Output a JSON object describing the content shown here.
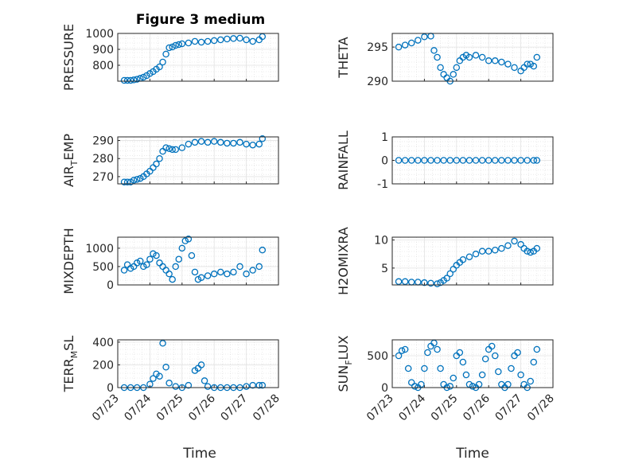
{
  "figure": {
    "title": "Figure 3 medium",
    "xlabel": "Time",
    "marker_color": "#0072BD",
    "xticks": [
      "07/23",
      "07/24",
      "07/25",
      "07/26",
      "07/27",
      "07/28"
    ]
  },
  "chart_data": [
    {
      "id": "pressure",
      "type": "scatter",
      "ylabel": "PRESSURE",
      "ylabel_sub": "",
      "ylabel_rest": "",
      "ylim": [
        700,
        1000
      ],
      "yticks": [
        800,
        900,
        1000
      ],
      "xlim": [
        0,
        5
      ],
      "x": [
        0.2,
        0.3,
        0.4,
        0.5,
        0.6,
        0.7,
        0.8,
        0.9,
        1.0,
        1.1,
        1.2,
        1.3,
        1.4,
        1.5,
        1.6,
        1.7,
        1.8,
        1.9,
        2.0,
        2.2,
        2.4,
        2.6,
        2.8,
        3.0,
        3.2,
        3.4,
        3.6,
        3.8,
        4.0,
        4.2,
        4.4,
        4.5
      ],
      "y": [
        705,
        705,
        705,
        708,
        712,
        718,
        725,
        735,
        748,
        760,
        775,
        790,
        820,
        870,
        910,
        915,
        925,
        930,
        935,
        940,
        950,
        945,
        950,
        955,
        960,
        965,
        968,
        970,
        960,
        950,
        960,
        980
      ]
    },
    {
      "id": "theta",
      "type": "scatter",
      "ylabel": "THETA",
      "ylabel_sub": "",
      "ylabel_rest": "",
      "ylim": [
        290,
        297
      ],
      "yticks": [
        290,
        295
      ],
      "xlim": [
        0,
        5
      ],
      "x": [
        0.2,
        0.4,
        0.6,
        0.8,
        1.0,
        1.2,
        1.3,
        1.4,
        1.5,
        1.6,
        1.7,
        1.8,
        1.9,
        2.0,
        2.1,
        2.2,
        2.3,
        2.4,
        2.6,
        2.8,
        3.0,
        3.2,
        3.4,
        3.6,
        3.8,
        4.0,
        4.1,
        4.2,
        4.3,
        4.4,
        4.5
      ],
      "y": [
        295,
        295.3,
        295.6,
        296,
        296.5,
        296.6,
        294.5,
        293.5,
        292,
        291,
        290.5,
        290,
        291,
        292,
        293,
        293.5,
        293.8,
        293.5,
        293.8,
        293.5,
        293,
        293,
        292.8,
        292.5,
        292,
        291.5,
        292,
        292.5,
        292.5,
        292.2,
        293.5
      ]
    },
    {
      "id": "air_temp",
      "type": "scatter",
      "ylabel": "AIR",
      "ylabel_sub": "T",
      "ylabel_rest": "EMP",
      "ylim": [
        266,
        292
      ],
      "yticks": [
        270,
        280,
        290
      ],
      "xlim": [
        0,
        5
      ],
      "x": [
        0.2,
        0.3,
        0.4,
        0.5,
        0.6,
        0.7,
        0.8,
        0.9,
        1.0,
        1.1,
        1.2,
        1.3,
        1.4,
        1.5,
        1.6,
        1.7,
        1.8,
        2.0,
        2.2,
        2.4,
        2.6,
        2.8,
        3.0,
        3.2,
        3.4,
        3.6,
        3.8,
        4.0,
        4.2,
        4.4,
        4.5
      ],
      "y": [
        267,
        267,
        267,
        268,
        268.5,
        269,
        270,
        271.5,
        273,
        275,
        277,
        280,
        284,
        286,
        285.5,
        285,
        285,
        286,
        288,
        289,
        289.5,
        289,
        289.5,
        289,
        288.5,
        288.5,
        289,
        288,
        287.5,
        288,
        291
      ]
    },
    {
      "id": "rainfall",
      "type": "scatter",
      "ylabel": "RAINFALL",
      "ylabel_sub": "",
      "ylabel_rest": "",
      "ylim": [
        -1,
        1
      ],
      "yticks": [
        -1,
        0,
        1
      ],
      "xlim": [
        0,
        5
      ],
      "x": [
        0.2,
        0.4,
        0.6,
        0.8,
        1.0,
        1.2,
        1.4,
        1.6,
        1.8,
        2.0,
        2.2,
        2.4,
        2.6,
        2.8,
        3.0,
        3.2,
        3.4,
        3.6,
        3.8,
        4.0,
        4.2,
        4.4,
        4.5
      ],
      "y": [
        0,
        0,
        0,
        0,
        0,
        0,
        0,
        0,
        0,
        0,
        0,
        0,
        0,
        0,
        0,
        0,
        0,
        0,
        0,
        0,
        0,
        0,
        0
      ]
    },
    {
      "id": "mixdepth",
      "type": "scatter",
      "ylabel": "MIXDEPTH",
      "ylabel_sub": "",
      "ylabel_rest": "",
      "ylim": [
        0,
        1300
      ],
      "yticks": [
        0,
        500,
        1000
      ],
      "xlim": [
        0,
        5
      ],
      "x": [
        0.2,
        0.3,
        0.4,
        0.5,
        0.6,
        0.7,
        0.8,
        0.9,
        1.0,
        1.1,
        1.2,
        1.3,
        1.4,
        1.5,
        1.6,
        1.7,
        1.8,
        1.9,
        2.0,
        2.1,
        2.2,
        2.3,
        2.4,
        2.5,
        2.6,
        2.8,
        3.0,
        3.2,
        3.4,
        3.6,
        3.8,
        4.0,
        4.2,
        4.4,
        4.5
      ],
      "y": [
        400,
        550,
        450,
        500,
        600,
        650,
        500,
        550,
        700,
        850,
        800,
        600,
        500,
        400,
        300,
        150,
        500,
        700,
        1000,
        1200,
        1250,
        800,
        350,
        150,
        200,
        250,
        300,
        350,
        300,
        350,
        500,
        300,
        400,
        500,
        950
      ]
    },
    {
      "id": "h2omixra",
      "type": "scatter",
      "ylabel": "H2OMIXRA",
      "ylabel_sub": "",
      "ylabel_rest": "",
      "ylim": [
        2,
        10.5
      ],
      "yticks": [
        5,
        10
      ],
      "xlim": [
        0,
        5
      ],
      "x": [
        0.2,
        0.4,
        0.6,
        0.8,
        1.0,
        1.2,
        1.4,
        1.5,
        1.6,
        1.7,
        1.8,
        1.9,
        2.0,
        2.1,
        2.2,
        2.4,
        2.6,
        2.8,
        3.0,
        3.2,
        3.4,
        3.6,
        3.8,
        4.0,
        4.1,
        4.2,
        4.3,
        4.4,
        4.5
      ],
      "y": [
        2.6,
        2.6,
        2.5,
        2.5,
        2.4,
        2.3,
        2.2,
        2.4,
        2.8,
        3.2,
        4.0,
        4.8,
        5.5,
        6.0,
        6.5,
        7.0,
        7.5,
        8.0,
        8.0,
        8.2,
        8.5,
        9.0,
        9.8,
        9.2,
        8.5,
        8.0,
        7.8,
        8.0,
        8.5
      ]
    },
    {
      "id": "terr_msl",
      "type": "scatter",
      "ylabel": "TERR",
      "ylabel_sub": "M",
      "ylabel_rest": "SL",
      "ylim": [
        0,
        420
      ],
      "yticks": [
        0,
        200,
        400
      ],
      "xlim": [
        0,
        5
      ],
      "x": [
        0.2,
        0.4,
        0.6,
        0.8,
        1.0,
        1.1,
        1.2,
        1.3,
        1.4,
        1.5,
        1.6,
        1.8,
        2.0,
        2.2,
        2.4,
        2.5,
        2.6,
        2.7,
        2.8,
        3.0,
        3.2,
        3.4,
        3.6,
        3.8,
        4.0,
        4.2,
        4.4,
        4.5
      ],
      "y": [
        0,
        0,
        0,
        0,
        30,
        80,
        120,
        100,
        390,
        180,
        40,
        10,
        0,
        20,
        150,
        170,
        200,
        60,
        10,
        0,
        0,
        0,
        0,
        0,
        10,
        20,
        20,
        20
      ]
    },
    {
      "id": "sun_flux",
      "type": "scatter",
      "ylabel": "SUN",
      "ylabel_sub": "F",
      "ylabel_rest": "LUX",
      "ylim": [
        0,
        750
      ],
      "yticks": [
        0,
        500
      ],
      "xlim": [
        0,
        5
      ],
      "x": [
        0.2,
        0.3,
        0.4,
        0.5,
        0.6,
        0.7,
        0.8,
        0.9,
        1.0,
        1.1,
        1.2,
        1.3,
        1.4,
        1.5,
        1.6,
        1.7,
        1.8,
        1.9,
        2.0,
        2.1,
        2.2,
        2.3,
        2.4,
        2.5,
        2.6,
        2.7,
        2.8,
        2.9,
        3.0,
        3.1,
        3.2,
        3.3,
        3.4,
        3.5,
        3.6,
        3.7,
        3.8,
        3.9,
        4.0,
        4.1,
        4.2,
        4.3,
        4.4,
        4.5
      ],
      "y": [
        500,
        580,
        600,
        300,
        80,
        20,
        0,
        50,
        300,
        550,
        650,
        700,
        600,
        300,
        50,
        0,
        20,
        150,
        500,
        550,
        400,
        200,
        50,
        20,
        0,
        50,
        200,
        450,
        600,
        650,
        500,
        250,
        50,
        0,
        50,
        300,
        500,
        550,
        200,
        50,
        0,
        100,
        400,
        600
      ]
    }
  ]
}
